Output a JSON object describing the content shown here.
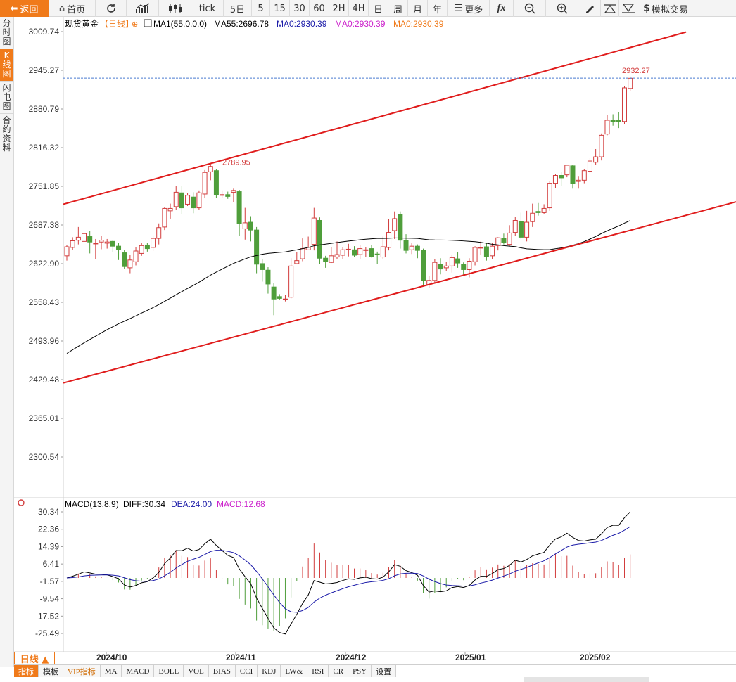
{
  "toolbar": {
    "back": "返回",
    "home": "首页",
    "tick": "tick",
    "periods": [
      "5日",
      "5",
      "15",
      "30",
      "60",
      "2H",
      "4H",
      "日",
      "周",
      "月",
      "年"
    ],
    "more": "更多",
    "sim_trade": "模拟交易"
  },
  "side_tabs": [
    {
      "label": "分时图",
      "active": false
    },
    {
      "label": "K线图",
      "active": true
    },
    {
      "label": "闪电图",
      "active": false
    },
    {
      "label": "合约资料",
      "active": false
    }
  ],
  "legend": {
    "symbol": "现货黄金",
    "period_tag": "【日线】",
    "ma1": "MA1(55,0,0,0)",
    "ma55": "MA55:2696.78",
    "ma0_a": "MA0:2930.39",
    "ma0_b": "MA0:2930.39",
    "ma0_c": "MA0:2930.39"
  },
  "colors": {
    "up": "#d23c3c",
    "down": "#4f9e3b",
    "channel": "#e01c1c",
    "ma": "#000000",
    "dea": "#1a1aa8",
    "macd_label": "#cc22cc",
    "accent": "#f07a1a"
  },
  "price_axis": [
    "3009.74",
    "2945.27",
    "2880.79",
    "2816.32",
    "2751.85",
    "2687.38",
    "2622.90",
    "2558.43",
    "2493.96",
    "2429.48",
    "2365.01",
    "2300.54"
  ],
  "annotations": {
    "high_label": "2789.95",
    "last_label": "2932.27"
  },
  "macd": {
    "title": "MACD(13,8,9)",
    "diff": "DIFF:30.34",
    "dea": "DEA:24.00",
    "macd": "MACD:12.68",
    "axis": [
      "30.34",
      "22.36",
      "14.39",
      "6.41",
      "-1.57",
      "-9.54",
      "-17.52",
      "-25.49"
    ]
  },
  "date_axis": [
    "2024/10",
    "2024/11",
    "2024/12",
    "2025/01",
    "2025/02"
  ],
  "period_label": "日线 ▲",
  "bottom_tabs": [
    {
      "label": "指标",
      "active": true
    },
    {
      "label": "模板"
    },
    {
      "label": "VIP指标",
      "vip": true
    },
    {
      "label": "MA"
    },
    {
      "label": "MACD"
    },
    {
      "label": "BOLL"
    },
    {
      "label": "VOL"
    },
    {
      "label": "BIAS"
    },
    {
      "label": "CCI"
    },
    {
      "label": "KDJ"
    },
    {
      "label": "LW&"
    },
    {
      "label": "RSI"
    },
    {
      "label": "CR"
    },
    {
      "label": "PSY"
    },
    {
      "label": "设置"
    }
  ],
  "chart_data": {
    "type": "candlestick",
    "price_range": [
      2300.54,
      3009.74
    ],
    "last_price": 2932.27,
    "candles_ohlc": [
      [
        2636,
        2651,
        2628,
        2654
      ],
      [
        2650,
        2661,
        2646,
        2667
      ],
      [
        2662,
        2667,
        2655,
        2684
      ],
      [
        2660,
        2673,
        2650,
        2676
      ],
      [
        2668,
        2659,
        2640,
        2678
      ],
      [
        2656,
        2657,
        2630,
        2664
      ],
      [
        2659,
        2662,
        2647,
        2669
      ],
      [
        2657,
        2659,
        2648,
        2664
      ],
      [
        2660,
        2652,
        2642,
        2662
      ],
      [
        2652,
        2646,
        2629,
        2657
      ],
      [
        2641,
        2618,
        2614,
        2646
      ],
      [
        2616,
        2629,
        2607,
        2637
      ],
      [
        2626,
        2644,
        2620,
        2650
      ],
      [
        2640,
        2653,
        2636,
        2657
      ],
      [
        2654,
        2648,
        2643,
        2658
      ],
      [
        2650,
        2665,
        2644,
        2670
      ],
      [
        2665,
        2683,
        2655,
        2690
      ],
      [
        2684,
        2715,
        2679,
        2717
      ],
      [
        2711,
        2715,
        2698,
        2723
      ],
      [
        2718,
        2742,
        2713,
        2752
      ],
      [
        2741,
        2716,
        2705,
        2752
      ],
      [
        2722,
        2737,
        2719,
        2741
      ],
      [
        2734,
        2716,
        2707,
        2742
      ],
      [
        2716,
        2741,
        2712,
        2745
      ],
      [
        2739,
        2775,
        2732,
        2779
      ],
      [
        2776,
        2785,
        2762,
        2789
      ],
      [
        2778,
        2738,
        2732,
        2781
      ],
      [
        2738,
        2738,
        2732,
        2745
      ],
      [
        2738,
        2735,
        2731,
        2743
      ],
      [
        2742,
        2745,
        2725,
        2748
      ],
      [
        2743,
        2690,
        2669,
        2746
      ],
      [
        2681,
        2691,
        2663,
        2716
      ],
      [
        2692,
        2679,
        2660,
        2702
      ],
      [
        2679,
        2622,
        2607,
        2684
      ],
      [
        2623,
        2613,
        2593,
        2630
      ],
      [
        2612,
        2589,
        2573,
        2617
      ],
      [
        2584,
        2564,
        2537,
        2590
      ],
      [
        2568,
        2565,
        2563,
        2572
      ],
      [
        2563,
        2564,
        2560,
        2571
      ],
      [
        2567,
        2619,
        2565,
        2632
      ],
      [
        2623,
        2628,
        2622,
        2642
      ],
      [
        2631,
        2648,
        2627,
        2665
      ],
      [
        2646,
        2650,
        2647,
        2668
      ],
      [
        2655,
        2699,
        2645,
        2716
      ],
      [
        2695,
        2632,
        2622,
        2700
      ],
      [
        2632,
        2627,
        2616,
        2636
      ],
      [
        2625,
        2636,
        2624,
        2650
      ],
      [
        2634,
        2638,
        2631,
        2660
      ],
      [
        2637,
        2646,
        2630,
        2651
      ],
      [
        2646,
        2647,
        2635,
        2656
      ],
      [
        2646,
        2637,
        2634,
        2652
      ],
      [
        2638,
        2648,
        2630,
        2654
      ],
      [
        2646,
        2646,
        2634,
        2651
      ],
      [
        2648,
        2635,
        2633,
        2654
      ],
      [
        2639,
        2638,
        2622,
        2643
      ],
      [
        2634,
        2651,
        2631,
        2668
      ],
      [
        2650,
        2675,
        2645,
        2697
      ],
      [
        2678,
        2698,
        2664,
        2710
      ],
      [
        2705,
        2662,
        2648,
        2710
      ],
      [
        2662,
        2645,
        2640,
        2672
      ],
      [
        2646,
        2652,
        2639,
        2657
      ],
      [
        2652,
        2645,
        2632,
        2655
      ],
      [
        2645,
        2595,
        2586,
        2648
      ],
      [
        2588,
        2595,
        2583,
        2603
      ],
      [
        2595,
        2625,
        2590,
        2630
      ],
      [
        2622,
        2614,
        2605,
        2632
      ],
      [
        2616,
        2619,
        2611,
        2626
      ],
      [
        2619,
        2633,
        2608,
        2637
      ],
      [
        2631,
        2624,
        2616,
        2642
      ],
      [
        2622,
        2613,
        2603,
        2625
      ],
      [
        2613,
        2627,
        2600,
        2632
      ],
      [
        2626,
        2650,
        2620,
        2652
      ],
      [
        2650,
        2650,
        2637,
        2660
      ],
      [
        2651,
        2635,
        2628,
        2658
      ],
      [
        2636,
        2652,
        2630,
        2658
      ],
      [
        2653,
        2666,
        2645,
        2667
      ],
      [
        2665,
        2658,
        2655,
        2673
      ],
      [
        2655,
        2674,
        2652,
        2687
      ],
      [
        2675,
        2695,
        2669,
        2701
      ],
      [
        2693,
        2667,
        2664,
        2708
      ],
      [
        2667,
        2692,
        2660,
        2711
      ],
      [
        2693,
        2707,
        2684,
        2723
      ],
      [
        2710,
        2708,
        2703,
        2724
      ],
      [
        2708,
        2715,
        2705,
        2722
      ],
      [
        2716,
        2757,
        2711,
        2760
      ],
      [
        2757,
        2770,
        2749,
        2772
      ],
      [
        2770,
        2766,
        2753,
        2776
      ],
      [
        2771,
        2787,
        2767,
        2787
      ],
      [
        2786,
        2756,
        2748,
        2788
      ],
      [
        2760,
        2762,
        2748,
        2768
      ],
      [
        2762,
        2778,
        2757,
        2780
      ],
      [
        2777,
        2794,
        2773,
        2799
      ],
      [
        2792,
        2801,
        2788,
        2814
      ],
      [
        2801,
        2837,
        2795,
        2840
      ],
      [
        2839,
        2862,
        2837,
        2871
      ],
      [
        2862,
        2860,
        2853,
        2872
      ],
      [
        2862,
        2860,
        2849,
        2876
      ],
      [
        2860,
        2916,
        2855,
        2919
      ],
      [
        2915,
        2932,
        2911,
        2935
      ]
    ],
    "moving_average": {
      "name": "MA55",
      "last": 2696.78
    },
    "trend_channel": {
      "upper": [
        [
          0,
          2722
        ],
        [
          1,
          3009
        ]
      ],
      "lower": [
        [
          0,
          2424
        ],
        [
          1,
          2726
        ]
      ]
    },
    "macd": {
      "diff_last": 30.34,
      "dea_last": 24.0,
      "macd_last": 12.68,
      "range": [
        -25.49,
        30.34
      ]
    },
    "x_labels": [
      "2024/10",
      "2024/11",
      "2024/12",
      "2025/01",
      "2025/02"
    ]
  }
}
